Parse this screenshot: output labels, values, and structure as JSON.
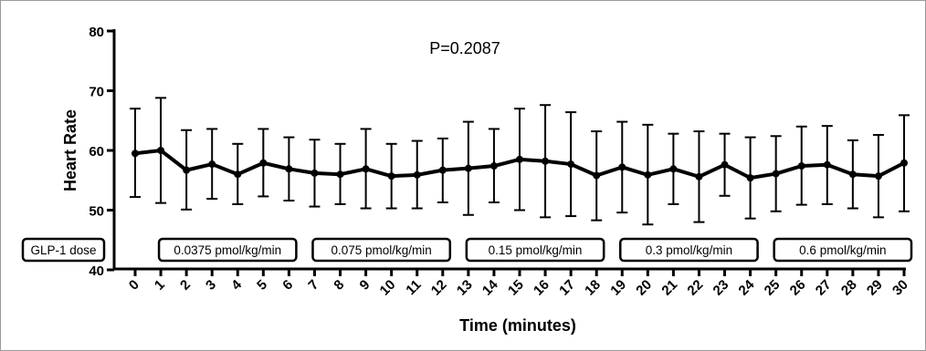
{
  "chart_data": {
    "type": "line",
    "xlabel": "Time (minutes)",
    "ylabel": "Heart Rate",
    "ylim": [
      40,
      80
    ],
    "yticks": [
      40,
      50,
      60,
      70,
      80
    ],
    "xlim": [
      0,
      30
    ],
    "annotation": "P=0.2087",
    "x": [
      0,
      1,
      2,
      3,
      4,
      5,
      6,
      7,
      8,
      9,
      10,
      11,
      12,
      13,
      14,
      15,
      16,
      17,
      18,
      19,
      20,
      21,
      22,
      23,
      24,
      25,
      26,
      27,
      28,
      29,
      30
    ],
    "series": [
      {
        "values": [
          59.5,
          60,
          56.7,
          57.7,
          56,
          57.9,
          56.9,
          56.2,
          56,
          56.9,
          55.7,
          55.9,
          56.7,
          57,
          57.4,
          58.5,
          58.2,
          57.7,
          55.8,
          57.2,
          55.9,
          56.9,
          55.6,
          57.6,
          55.4,
          56.1,
          57.4,
          57.6,
          56,
          55.7,
          57.9
        ],
        "err_upper": [
          67,
          68.8,
          63.4,
          63.6,
          61.1,
          63.6,
          62.2,
          61.8,
          61.1,
          63.6,
          61.1,
          61.6,
          62,
          64.8,
          63.6,
          67,
          67.6,
          66.4,
          63.2,
          64.8,
          64.3,
          62.8,
          63.2,
          62.8,
          62.2,
          62.4,
          64,
          64.1,
          61.7,
          62.6,
          65.9
        ],
        "err_lower": [
          52.2,
          51.2,
          50.1,
          51.9,
          51,
          52.3,
          51.6,
          50.6,
          51,
          50.3,
          50.3,
          50.3,
          51.3,
          49.2,
          51.3,
          50,
          48.8,
          49,
          48.3,
          49.6,
          47.6,
          51,
          48,
          52.4,
          48.6,
          49.8,
          50.9,
          51,
          50.3,
          48.8,
          49.8
        ]
      }
    ],
    "dose_label": "GLP-1 dose",
    "dose_boxes": [
      {
        "label": "0.0375 pmol/kg/min",
        "from": 1,
        "to": 6
      },
      {
        "label": "0.075 pmol/kg/min",
        "from": 7,
        "to": 12
      },
      {
        "label": "0.15 pmol/kg/min",
        "from": 13,
        "to": 18
      },
      {
        "label": "0.3 pmol/kg/min",
        "from": 19,
        "to": 24
      },
      {
        "label": "0.6 pmol/kg/min",
        "from": 25,
        "to": 30
      }
    ]
  }
}
